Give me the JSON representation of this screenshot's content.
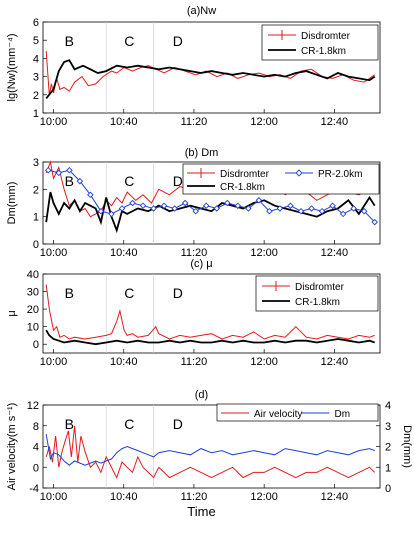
{
  "chart_data": [
    {
      "type": "line",
      "title": "(a)Nw",
      "ylabel": "lg(Nw)(mm⁻⁴)",
      "xlabel": "",
      "x_ticks": [
        "10:00",
        "10:40",
        "11:20",
        "12:00",
        "12:40"
      ],
      "xlim": [
        9.9,
        13.1
      ],
      "ylim": [
        1,
        6
      ],
      "y_ticks": [
        "1",
        "2",
        "3",
        "4",
        "5",
        "6"
      ],
      "period_labels": [
        "B",
        "C",
        "D"
      ],
      "period_boundaries": [
        10.5,
        10.95
      ],
      "legend": {
        "placement": "top-right",
        "entries": [
          "Disdromter",
          "CR-1.8km"
        ]
      },
      "series": [
        {
          "name": "Disdromter",
          "color": "#e31a1c",
          "x": [
            9.93,
            9.96,
            9.98,
            10.0,
            10.03,
            10.06,
            10.1,
            10.15,
            10.2,
            10.27,
            10.33,
            10.4,
            10.47,
            10.55,
            10.6,
            10.67,
            10.75,
            10.83,
            10.9,
            10.98,
            11.05,
            11.15,
            11.25,
            11.35,
            11.45,
            11.55,
            11.65,
            11.75,
            11.85,
            11.95,
            12.05,
            12.15,
            12.25,
            12.35,
            12.45,
            12.55,
            12.65,
            12.75,
            12.85,
            12.95,
            13.05
          ],
          "y": [
            4.4,
            2.0,
            2.6,
            2.1,
            2.9,
            2.3,
            2.4,
            2.2,
            2.7,
            3.0,
            2.5,
            2.6,
            3.0,
            3.3,
            3.2,
            3.5,
            3.3,
            3.5,
            3.6,
            3.4,
            3.2,
            3.5,
            3.3,
            3.1,
            3.3,
            3.0,
            3.2,
            2.9,
            3.1,
            3.2,
            3.0,
            3.1,
            2.9,
            3.3,
            3.4,
            3.0,
            2.9,
            3.1,
            2.8,
            2.7,
            3.1
          ]
        },
        {
          "name": "CR-1.8km",
          "color": "#000000",
          "x": [
            9.93,
            10.0,
            10.05,
            10.1,
            10.15,
            10.2,
            10.28,
            10.35,
            10.42,
            10.5,
            10.6,
            10.7,
            10.8,
            10.9,
            11.0,
            11.1,
            11.2,
            11.3,
            11.4,
            11.5,
            11.6,
            11.7,
            11.8,
            11.9,
            12.0,
            12.1,
            12.2,
            12.3,
            12.4,
            12.5,
            12.6,
            12.7,
            12.8,
            12.9,
            13.0,
            13.05
          ],
          "y": [
            1.8,
            2.3,
            3.3,
            3.8,
            3.9,
            3.4,
            3.6,
            3.4,
            3.2,
            3.3,
            3.6,
            3.5,
            3.6,
            3.5,
            3.4,
            3.5,
            3.4,
            3.3,
            3.2,
            3.3,
            3.2,
            3.1,
            3.2,
            3.1,
            3.0,
            3.1,
            3.0,
            3.2,
            3.3,
            3.1,
            2.9,
            3.2,
            3.0,
            2.9,
            2.8,
            3.0
          ]
        }
      ]
    },
    {
      "type": "line",
      "title": "(b) Dm",
      "ylabel": "Dm(mm)",
      "xlabel": "",
      "x_ticks": [
        "10:00",
        "10:40",
        "11:20",
        "12:00",
        "12:40"
      ],
      "xlim": [
        9.9,
        13.1
      ],
      "ylim": [
        0,
        3
      ],
      "y_ticks": [
        "0",
        "1",
        "2",
        "3"
      ],
      "period_labels": [
        "B",
        "C",
        "D"
      ],
      "period_boundaries": [
        10.5,
        10.95
      ],
      "legend": {
        "placement": "top-right",
        "entries": [
          "Disdromter",
          "PR-2.0km",
          "CR-1.8km"
        ]
      },
      "series": [
        {
          "name": "Disdromter",
          "color": "#e31a1c",
          "x": [
            9.93,
            9.97,
            10.0,
            10.05,
            10.1,
            10.15,
            10.2,
            10.25,
            10.3,
            10.35,
            10.4,
            10.45,
            10.5,
            10.55,
            10.6,
            10.65,
            10.7,
            10.78,
            10.85,
            10.93,
            11.0,
            11.1,
            11.2,
            11.3,
            11.4,
            11.5,
            11.6,
            11.7,
            11.8,
            11.9,
            12.0,
            12.1,
            12.2,
            12.3,
            12.4,
            12.5,
            12.6,
            12.7,
            12.8,
            12.9,
            13.0,
            13.05
          ],
          "y": [
            2.6,
            3.0,
            2.4,
            2.8,
            2.0,
            1.4,
            1.6,
            1.2,
            1.3,
            1.0,
            1.1,
            1.2,
            1.6,
            1.4,
            1.7,
            1.5,
            1.9,
            1.6,
            1.8,
            1.5,
            2.0,
            1.8,
            2.1,
            2.0,
            2.3,
            2.2,
            2.0,
            1.9,
            2.3,
            2.1,
            2.0,
            2.2,
            1.8,
            2.1,
            1.9,
            1.6,
            1.8,
            2.0,
            1.9,
            1.8,
            2.0,
            1.9
          ]
        },
        {
          "name": "CR-1.8km",
          "color": "#000000",
          "x": [
            9.93,
            9.97,
            10.0,
            10.05,
            10.1,
            10.15,
            10.2,
            10.25,
            10.3,
            10.35,
            10.4,
            10.45,
            10.5,
            10.55,
            10.6,
            10.65,
            10.7,
            10.8,
            10.9,
            11.0,
            11.1,
            11.2,
            11.3,
            11.4,
            11.5,
            11.6,
            11.7,
            11.8,
            11.9,
            12.0,
            12.1,
            12.2,
            12.3,
            12.4,
            12.5,
            12.6,
            12.7,
            12.8,
            12.9,
            13.0,
            13.05
          ],
          "y": [
            0.8,
            1.9,
            1.5,
            1.1,
            1.5,
            1.3,
            1.6,
            1.2,
            1.5,
            1.4,
            1.3,
            0.8,
            1.7,
            1.0,
            0.5,
            1.2,
            1.1,
            1.3,
            1.2,
            1.4,
            1.2,
            1.3,
            1.4,
            1.3,
            1.2,
            1.5,
            1.4,
            1.3,
            1.5,
            1.6,
            1.4,
            1.3,
            1.2,
            1.1,
            1.0,
            1.2,
            1.3,
            1.6,
            1.1,
            1.7,
            1.4
          ]
        },
        {
          "name": "PR-2.0km",
          "color": "#1f3fd8",
          "x": [
            9.95,
            10.05,
            10.15,
            10.25,
            10.35,
            10.45,
            10.55,
            10.65,
            10.75,
            10.85,
            10.95,
            11.05,
            11.15,
            11.25,
            11.35,
            11.45,
            11.55,
            11.65,
            11.75,
            11.85,
            11.95,
            12.05,
            12.15,
            12.25,
            12.35,
            12.45,
            12.55,
            12.65,
            12.75,
            12.85,
            12.95,
            13.05
          ],
          "y": [
            2.7,
            2.6,
            2.7,
            2.3,
            1.8,
            1.2,
            1.1,
            1.3,
            1.5,
            1.4,
            1.3,
            1.4,
            1.3,
            1.5,
            1.2,
            1.4,
            1.3,
            1.5,
            1.4,
            1.3,
            1.6,
            1.2,
            1.3,
            1.4,
            1.2,
            1.3,
            1.2,
            1.4,
            1.1,
            1.3,
            1.2,
            0.8
          ]
        }
      ]
    },
    {
      "type": "line",
      "title": "(c) μ",
      "ylabel": "μ",
      "xlabel": "",
      "x_ticks": [
        "10:00",
        "10:40",
        "11:20",
        "12:00",
        "12:40"
      ],
      "xlim": [
        9.9,
        13.1
      ],
      "ylim": [
        -5,
        40
      ],
      "y_ticks": [
        "0",
        "10",
        "20",
        "30",
        "40"
      ],
      "period_labels": [
        "B",
        "C",
        "D"
      ],
      "period_boundaries": [
        10.5,
        10.95
      ],
      "legend": {
        "placement": "top-right",
        "entries": [
          "Disdromter",
          "CR-1.8km"
        ]
      },
      "series": [
        {
          "name": "Disdromter",
          "color": "#e31a1c",
          "x": [
            9.93,
            9.96,
            9.98,
            10.0,
            10.03,
            10.06,
            10.1,
            10.15,
            10.2,
            10.3,
            10.4,
            10.5,
            10.55,
            10.6,
            10.63,
            10.67,
            10.7,
            10.75,
            10.8,
            10.9,
            10.97,
            11.0,
            11.1,
            11.2,
            11.3,
            11.4,
            11.5,
            11.6,
            11.7,
            11.8,
            11.9,
            12.0,
            12.1,
            12.2,
            12.3,
            12.4,
            12.5,
            12.6,
            12.7,
            12.8,
            12.9,
            13.0,
            13.05
          ],
          "y": [
            34,
            20,
            14,
            8,
            10,
            4,
            5,
            3,
            4,
            3,
            4,
            5,
            6,
            13,
            19,
            8,
            5,
            6,
            4,
            5,
            10,
            6,
            3,
            5,
            4,
            5,
            6,
            3,
            5,
            4,
            7,
            3,
            5,
            4,
            10,
            4,
            3,
            5,
            4,
            3,
            5,
            4,
            5
          ]
        },
        {
          "name": "CR-1.8km",
          "color": "#000000",
          "x": [
            9.93,
            9.96,
            10.0,
            10.05,
            10.1,
            10.2,
            10.3,
            10.4,
            10.5,
            10.6,
            10.7,
            10.8,
            10.9,
            11.0,
            11.1,
            11.2,
            11.3,
            11.4,
            11.5,
            11.6,
            11.7,
            11.8,
            11.9,
            12.0,
            12.1,
            12.2,
            12.3,
            12.4,
            12.5,
            12.6,
            12.7,
            12.8,
            12.9,
            13.0,
            13.05
          ],
          "y": [
            8,
            5,
            3,
            2,
            1,
            2,
            1,
            0,
            1,
            2,
            1,
            2,
            1,
            1,
            2,
            1,
            2,
            1,
            1,
            2,
            1,
            2,
            1,
            1,
            2,
            1,
            2,
            2,
            1,
            2,
            3,
            2,
            1,
            2,
            1
          ]
        }
      ]
    },
    {
      "type": "line",
      "title": "(d)",
      "ylabel": "Air velocity(m s⁻¹)",
      "ylabel_right": "Dm(mm)",
      "xlabel": "Time",
      "x_ticks": [
        "10:00",
        "10:40",
        "11:20",
        "12:00",
        "12:40"
      ],
      "xlim": [
        9.9,
        13.1
      ],
      "ylim": [
        -4,
        12
      ],
      "y_ticks": [
        "-4",
        "0",
        "4",
        "8",
        "12"
      ],
      "ylim_right": [
        0,
        4
      ],
      "y_ticks_right": [
        "0",
        "1",
        "2",
        "3",
        "4"
      ],
      "period_labels": [
        "B",
        "C",
        "D"
      ],
      "period_boundaries": [
        10.5,
        10.95
      ],
      "legend": {
        "placement": "top-right",
        "entries": [
          "Air velocity",
          "Dm"
        ]
      },
      "series": [
        {
          "name": "Air velocity",
          "color": "#e31a1c",
          "axis": "left",
          "x": [
            9.93,
            9.96,
            9.99,
            10.02,
            10.05,
            10.08,
            10.11,
            10.14,
            10.17,
            10.2,
            10.23,
            10.26,
            10.3,
            10.35,
            10.4,
            10.45,
            10.5,
            10.55,
            10.6,
            10.65,
            10.7,
            10.75,
            10.8,
            10.85,
            10.9,
            10.95,
            11.0,
            11.05,
            11.1,
            11.2,
            11.3,
            11.4,
            11.5,
            11.6,
            11.7,
            11.8,
            11.9,
            12.0,
            12.1,
            12.2,
            12.3,
            12.4,
            12.5,
            12.6,
            12.7,
            12.8,
            12.9,
            13.0,
            13.05
          ],
          "y": [
            2,
            4,
            1,
            6,
            0,
            3,
            5,
            7,
            2,
            8,
            1,
            6,
            3,
            0,
            1,
            -1,
            2,
            0,
            -2,
            1,
            0,
            -1,
            2,
            0,
            -1,
            -2,
            0,
            -1,
            -2,
            -1,
            0,
            -1,
            -2,
            -1,
            0,
            -2,
            -1,
            -1,
            0,
            -1,
            -2,
            -1,
            -1,
            0,
            -1,
            -2,
            -1,
            0,
            -1
          ]
        },
        {
          "name": "Dm",
          "color": "#1f3fd8",
          "axis": "right",
          "x": [
            9.93,
            9.97,
            10.0,
            10.05,
            10.1,
            10.15,
            10.2,
            10.25,
            10.3,
            10.35,
            10.4,
            10.45,
            10.5,
            10.55,
            10.6,
            10.65,
            10.7,
            10.75,
            10.8,
            10.85,
            10.9,
            10.95,
            11.0,
            11.1,
            11.2,
            11.3,
            11.4,
            11.5,
            11.6,
            11.7,
            11.8,
            11.9,
            12.0,
            12.1,
            12.2,
            12.3,
            12.4,
            12.5,
            12.6,
            12.7,
            12.8,
            12.9,
            13.0,
            13.05
          ],
          "y": [
            2.6,
            1.4,
            1.7,
            1.6,
            1.3,
            1.1,
            1.3,
            1.2,
            1.1,
            1.2,
            1.3,
            1.2,
            1.3,
            1.4,
            1.7,
            1.9,
            2.0,
            1.9,
            1.8,
            1.7,
            1.6,
            1.5,
            1.7,
            1.8,
            1.7,
            1.6,
            1.9,
            1.7,
            1.8,
            1.6,
            1.7,
            1.8,
            1.7,
            1.6,
            1.9,
            1.8,
            1.7,
            1.6,
            1.8,
            1.7,
            1.6,
            1.8,
            1.9,
            1.8
          ]
        }
      ]
    }
  ]
}
